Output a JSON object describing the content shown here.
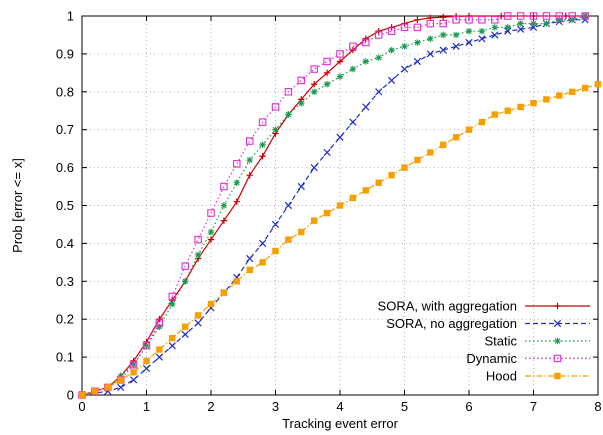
{
  "chart_data": {
    "type": "line",
    "title": "",
    "xlabel": "Tracking event error",
    "ylabel": "Prob [error <= x]",
    "xlim": [
      0,
      8
    ],
    "ylim": [
      0,
      1
    ],
    "xticks": [
      0,
      1,
      2,
      3,
      4,
      5,
      6,
      7,
      8
    ],
    "yticks": [
      0,
      0.1,
      0.2,
      0.3,
      0.4,
      0.5,
      0.6,
      0.7,
      0.8,
      0.9,
      1
    ],
    "grid": true,
    "legend_position": "bottom-right",
    "series": [
      {
        "name": "SORA, with aggregation",
        "color": "#cc0000",
        "marker": "plus",
        "line_style": "solid",
        "x": [
          0,
          0.4,
          0.6,
          0.8,
          1.0,
          1.2,
          1.4,
          1.6,
          1.8,
          2.0,
          2.2,
          2.4,
          2.6,
          2.8,
          3.0,
          3.2,
          3.4,
          3.6,
          3.8,
          4.0,
          4.2,
          4.4,
          4.6,
          4.8,
          5.0,
          5.2,
          5.4,
          5.6,
          5.8,
          6.0,
          6.5,
          7.0,
          7.5,
          7.8
        ],
        "y": [
          0,
          0.02,
          0.05,
          0.09,
          0.14,
          0.2,
          0.25,
          0.3,
          0.36,
          0.41,
          0.46,
          0.51,
          0.58,
          0.63,
          0.69,
          0.74,
          0.78,
          0.82,
          0.85,
          0.88,
          0.91,
          0.94,
          0.96,
          0.97,
          0.98,
          0.99,
          0.995,
          0.997,
          0.999,
          1,
          1,
          1,
          1,
          1
        ]
      },
      {
        "name": "SORA, no aggregation",
        "color": "#1f2fbf",
        "marker": "cross",
        "line_style": "dashed",
        "x": [
          0,
          0.4,
          0.6,
          0.8,
          1.0,
          1.2,
          1.4,
          1.6,
          1.8,
          2.0,
          2.2,
          2.4,
          2.6,
          2.8,
          3.0,
          3.2,
          3.4,
          3.6,
          3.8,
          4.0,
          4.2,
          4.4,
          4.6,
          4.8,
          5.0,
          5.2,
          5.4,
          5.6,
          5.8,
          6.0,
          6.2,
          6.4,
          6.6,
          6.8,
          7.0,
          7.2,
          7.4,
          7.6,
          7.8
        ],
        "y": [
          0,
          0.01,
          0.02,
          0.04,
          0.07,
          0.1,
          0.13,
          0.16,
          0.19,
          0.23,
          0.27,
          0.31,
          0.36,
          0.4,
          0.45,
          0.5,
          0.55,
          0.6,
          0.64,
          0.68,
          0.72,
          0.76,
          0.8,
          0.83,
          0.86,
          0.88,
          0.9,
          0.91,
          0.92,
          0.93,
          0.94,
          0.95,
          0.96,
          0.965,
          0.97,
          0.98,
          0.985,
          0.99,
          0.99
        ]
      },
      {
        "name": "Static",
        "color": "#1a9a50",
        "marker": "star",
        "line_style": "dotted",
        "x": [
          0,
          0.2,
          0.4,
          0.6,
          0.8,
          1.0,
          1.2,
          1.4,
          1.6,
          1.8,
          2.0,
          2.2,
          2.4,
          2.6,
          2.8,
          3.0,
          3.2,
          3.4,
          3.6,
          3.8,
          4.0,
          4.2,
          4.4,
          4.6,
          4.8,
          5.0,
          5.2,
          5.4,
          5.6,
          5.8,
          6.0,
          6.2,
          6.4,
          6.6,
          6.8,
          7.0,
          7.2,
          7.4,
          7.6,
          7.8
        ],
        "y": [
          0,
          0.01,
          0.02,
          0.05,
          0.08,
          0.13,
          0.18,
          0.24,
          0.3,
          0.37,
          0.43,
          0.5,
          0.56,
          0.62,
          0.66,
          0.7,
          0.74,
          0.77,
          0.8,
          0.82,
          0.84,
          0.86,
          0.88,
          0.89,
          0.91,
          0.92,
          0.93,
          0.94,
          0.95,
          0.95,
          0.96,
          0.96,
          0.97,
          0.97,
          0.98,
          0.98,
          0.98,
          0.99,
          0.99,
          1
        ]
      },
      {
        "name": "Dynamic",
        "color": "#e02ed0",
        "marker": "square",
        "line_style": "dotted",
        "x": [
          0,
          0.2,
          0.4,
          0.6,
          0.8,
          1.0,
          1.2,
          1.4,
          1.6,
          1.8,
          2.0,
          2.2,
          2.4,
          2.6,
          2.8,
          3.0,
          3.2,
          3.4,
          3.6,
          3.8,
          4.0,
          4.2,
          4.4,
          4.6,
          4.8,
          5.0,
          5.2,
          5.4,
          5.6,
          5.8,
          6.0,
          6.2,
          6.4,
          6.6,
          6.8,
          7.0,
          7.2,
          7.4,
          7.6,
          7.8
        ],
        "y": [
          0,
          0.01,
          0.02,
          0.04,
          0.08,
          0.13,
          0.19,
          0.26,
          0.34,
          0.41,
          0.48,
          0.55,
          0.61,
          0.67,
          0.72,
          0.76,
          0.8,
          0.83,
          0.86,
          0.88,
          0.9,
          0.92,
          0.93,
          0.95,
          0.96,
          0.97,
          0.97,
          0.98,
          0.98,
          0.99,
          0.99,
          0.99,
          0.99,
          1,
          1,
          1,
          1,
          1,
          1,
          1
        ]
      },
      {
        "name": "Hood",
        "color": "#f5a000",
        "marker": "filled-square",
        "line_style": "dash-dot",
        "x": [
          0,
          0.2,
          0.4,
          0.6,
          0.8,
          1.0,
          1.2,
          1.4,
          1.6,
          1.8,
          2.0,
          2.2,
          2.4,
          2.6,
          2.8,
          3.0,
          3.2,
          3.4,
          3.6,
          3.8,
          4.0,
          4.2,
          4.4,
          4.6,
          4.8,
          5.0,
          5.2,
          5.4,
          5.6,
          5.8,
          6.0,
          6.2,
          6.4,
          6.6,
          6.8,
          7.0,
          7.2,
          7.4,
          7.6,
          7.8,
          8.0
        ],
        "y": [
          0,
          0.01,
          0.02,
          0.04,
          0.06,
          0.09,
          0.12,
          0.15,
          0.18,
          0.21,
          0.24,
          0.27,
          0.3,
          0.33,
          0.35,
          0.38,
          0.41,
          0.43,
          0.46,
          0.48,
          0.5,
          0.52,
          0.54,
          0.56,
          0.58,
          0.6,
          0.62,
          0.64,
          0.66,
          0.68,
          0.7,
          0.72,
          0.74,
          0.75,
          0.76,
          0.77,
          0.78,
          0.79,
          0.8,
          0.81,
          0.82
        ]
      }
    ]
  }
}
